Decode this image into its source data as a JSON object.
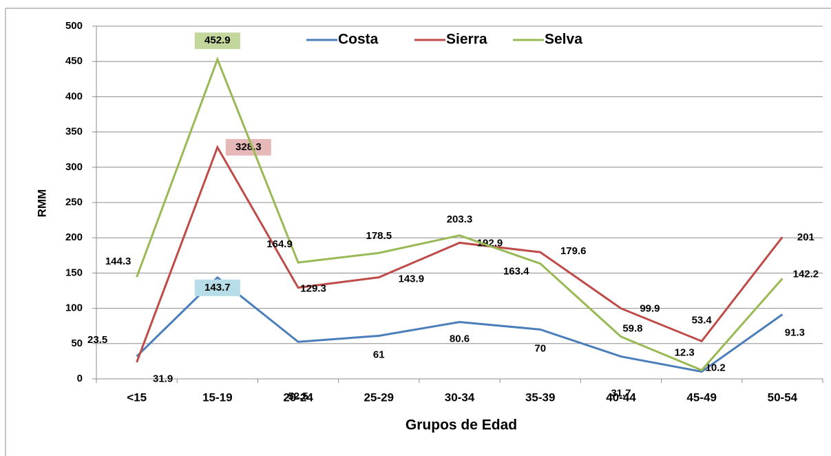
{
  "chart_data": {
    "type": "line",
    "x_label": "Grupos de Edad",
    "y_label": "RMM",
    "categories": [
      "<15",
      "15-19",
      "20-24",
      "25-29",
      "30-34",
      "35-39",
      "40-44",
      "45-49",
      "50-54"
    ],
    "series": [
      {
        "name": "Costa",
        "color": "#4a7ebb",
        "values": [
          31.9,
          143.7,
          52.5,
          61,
          80.6,
          70,
          31.7,
          10.2,
          91.3
        ]
      },
      {
        "name": "Sierra",
        "color": "#be4b48",
        "values": [
          23.5,
          328.3,
          129.3,
          143.9,
          192.9,
          179.6,
          99.9,
          53.4,
          201
        ]
      },
      {
        "name": "Selva",
        "color": "#98b954",
        "values": [
          144.3,
          452.9,
          164.9,
          178.5,
          203.3,
          163.4,
          59.8,
          12.3,
          142.2
        ]
      }
    ],
    "ylim": [
      0,
      500
    ],
    "yticks": [
      0,
      50,
      100,
      150,
      200,
      250,
      300,
      350,
      400,
      450,
      500
    ],
    "grid": true,
    "legend": "top"
  }
}
